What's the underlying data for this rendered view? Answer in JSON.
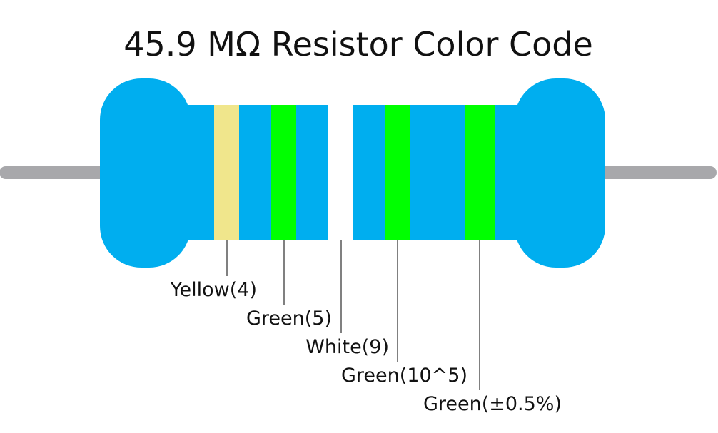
{
  "title": "45.9 MΩ Resistor Color Code",
  "bands": [
    {
      "label": "Yellow(4)"
    },
    {
      "label": "Green(5)"
    },
    {
      "label": "White(9)"
    },
    {
      "label": "Green(10^5)"
    },
    {
      "label": "Green(±0.5%)"
    }
  ]
}
